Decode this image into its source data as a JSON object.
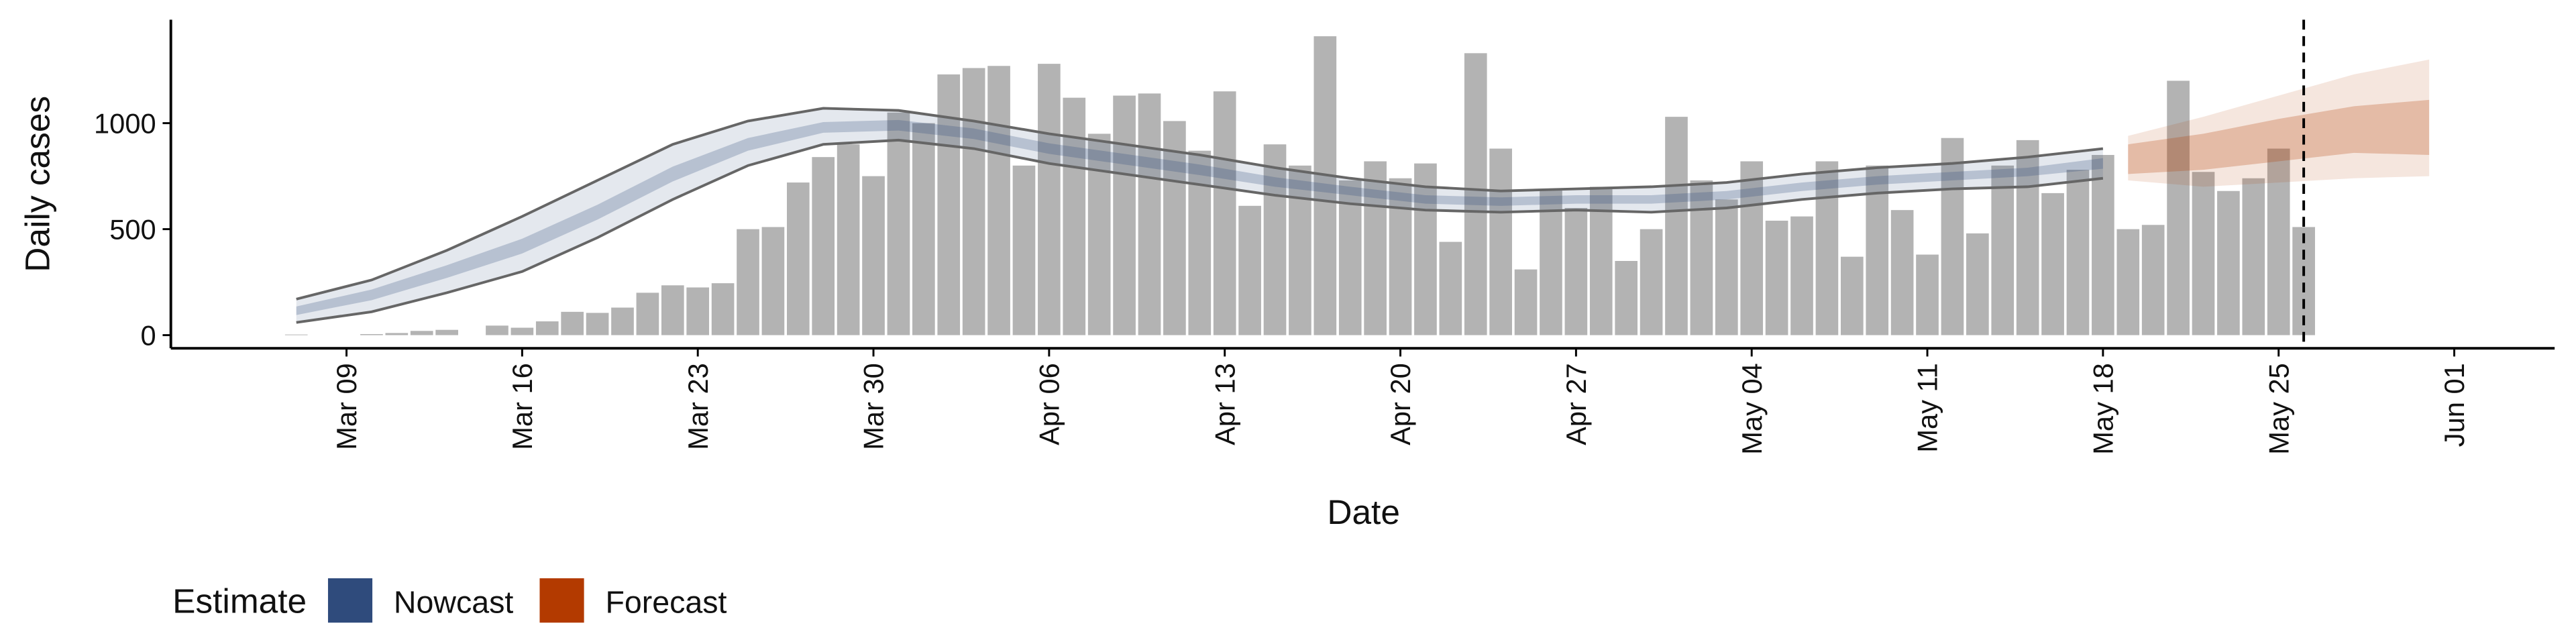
{
  "chart_data": {
    "type": "combo",
    "x_label": "Date",
    "y_label": "Daily cases",
    "legend_title": "Estimate",
    "legend_position": "bottom",
    "xlim": [
      "Mar 02",
      "Jun 05"
    ],
    "ylim": [
      -62,
      1488
    ],
    "yticks": [
      0,
      500,
      1000
    ],
    "xticks": [
      "Mar 09",
      "Mar 16",
      "Mar 23",
      "Mar 30",
      "Apr 06",
      "Apr 13",
      "Apr 20",
      "Apr 27",
      "May 04",
      "May 11",
      "May 18",
      "May 25",
      "Jun 01"
    ],
    "vline": "May 26",
    "bars": {
      "color": "#b3b3b3",
      "x": [
        "Mar 07",
        "Mar 08",
        "Mar 09",
        "Mar 10",
        "Mar 11",
        "Mar 12",
        "Mar 13",
        "Mar 14",
        "Mar 15",
        "Mar 16",
        "Mar 17",
        "Mar 18",
        "Mar 19",
        "Mar 20",
        "Mar 21",
        "Mar 22",
        "Mar 23",
        "Mar 24",
        "Mar 25",
        "Mar 26",
        "Mar 27",
        "Mar 28",
        "Mar 29",
        "Mar 30",
        "Mar 31",
        "Apr 01",
        "Apr 02",
        "Apr 03",
        "Apr 04",
        "Apr 05",
        "Apr 06",
        "Apr 07",
        "Apr 08",
        "Apr 09",
        "Apr 10",
        "Apr 11",
        "Apr 12",
        "Apr 13",
        "Apr 14",
        "Apr 15",
        "Apr 16",
        "Apr 17",
        "Apr 18",
        "Apr 19",
        "Apr 20",
        "Apr 21",
        "Apr 22",
        "Apr 23",
        "Apr 24",
        "Apr 25",
        "Apr 26",
        "Apr 27",
        "Apr 28",
        "Apr 29",
        "Apr 30",
        "May 01",
        "May 02",
        "May 03",
        "May 04",
        "May 05",
        "May 06",
        "May 07",
        "May 08",
        "May 09",
        "May 10",
        "May 11",
        "May 12",
        "May 13",
        "May 14",
        "May 15",
        "May 16",
        "May 17",
        "May 18",
        "May 19",
        "May 20",
        "May 21",
        "May 22",
        "May 23",
        "May 24",
        "May 25",
        "May 26"
      ],
      "values": [
        3,
        0,
        0,
        5,
        10,
        20,
        25,
        0,
        45,
        35,
        65,
        110,
        105,
        130,
        200,
        235,
        225,
        245,
        500,
        510,
        720,
        840,
        900,
        750,
        1050,
        1000,
        1230,
        1260,
        1270,
        800,
        1280,
        1120,
        950,
        1130,
        1140,
        1010,
        870,
        1150,
        610,
        900,
        800,
        1410,
        730,
        820,
        740,
        810,
        440,
        1330,
        880,
        310,
        690,
        600,
        700,
        350,
        500,
        1030,
        730,
        640,
        820,
        540,
        560,
        820,
        370,
        800,
        590,
        380,
        930,
        480,
        800,
        920,
        670,
        780,
        850,
        500,
        520,
        1200,
        770,
        680,
        740,
        880,
        510
      ]
    },
    "series": [
      {
        "name": "Nowcast",
        "color": "#2f4b7c",
        "line_color": "#666666",
        "x": [
          "Mar 07",
          "Mar 10",
          "Mar 13",
          "Mar 16",
          "Mar 19",
          "Mar 22",
          "Mar 25",
          "Mar 28",
          "Mar 31",
          "Apr 03",
          "Apr 06",
          "Apr 09",
          "Apr 12",
          "Apr 15",
          "Apr 18",
          "Apr 21",
          "Apr 24",
          "Apr 27",
          "Apr 30",
          "May 03",
          "May 06",
          "May 09",
          "May 12",
          "May 15",
          "May 18"
        ],
        "lower50": [
          95,
          165,
          270,
          385,
          545,
          725,
          870,
          955,
          965,
          925,
          855,
          805,
          755,
          700,
          660,
          620,
          610,
          620,
          620,
          640,
          680,
          710,
          730,
          750,
          785
        ],
        "upper50": [
          135,
          215,
          330,
          455,
          615,
          795,
          930,
          1005,
          1015,
          975,
          905,
          855,
          805,
          745,
          700,
          660,
          650,
          660,
          660,
          680,
          720,
          750,
          770,
          790,
          835
        ],
        "lower90": [
          60,
          110,
          200,
          300,
          460,
          640,
          800,
          900,
          920,
          880,
          810,
          760,
          710,
          660,
          620,
          590,
          580,
          590,
          580,
          600,
          640,
          670,
          690,
          700,
          740
        ],
        "upper90": [
          170,
          260,
          400,
          560,
          730,
          900,
          1010,
          1070,
          1060,
          1010,
          950,
          900,
          850,
          790,
          740,
          700,
          680,
          690,
          700,
          720,
          760,
          790,
          810,
          840,
          880
        ]
      },
      {
        "name": "Forecast",
        "color": "#b33a00",
        "line_color": "#666666",
        "x": [
          "May 19",
          "May 22",
          "May 25",
          "May 28",
          "May 31"
        ],
        "lower50": [
          760,
          780,
          820,
          860,
          850
        ],
        "upper50": [
          900,
          950,
          1020,
          1080,
          1110
        ],
        "lower90": [
          730,
          700,
          720,
          740,
          750
        ],
        "upper90": [
          940,
          1030,
          1130,
          1230,
          1300
        ]
      }
    ]
  }
}
